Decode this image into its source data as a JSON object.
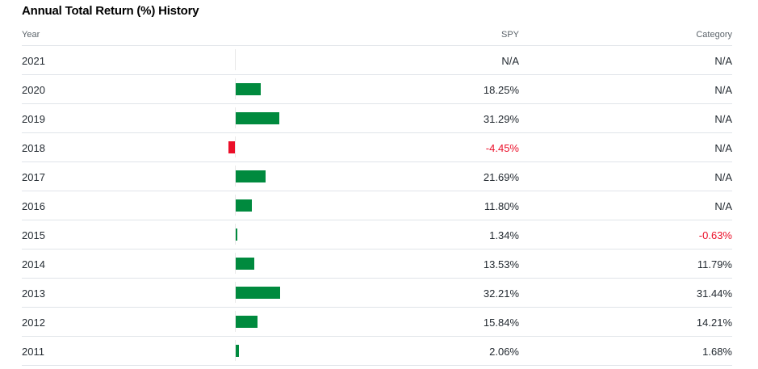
{
  "title": "Annual Total Return (%) History",
  "columns": {
    "year": "Year",
    "spy": "SPY",
    "category": "Category"
  },
  "colors": {
    "positive": "#008a3e",
    "negative": "#eb0f29"
  },
  "rows": [
    {
      "year": "2021",
      "spy": "N/A",
      "category": "N/A",
      "spy_value": null
    },
    {
      "year": "2020",
      "spy": "18.25%",
      "category": "N/A",
      "spy_value": 18.25
    },
    {
      "year": "2019",
      "spy": "31.29%",
      "category": "N/A",
      "spy_value": 31.29
    },
    {
      "year": "2018",
      "spy": "-4.45%",
      "category": "N/A",
      "spy_value": -4.45
    },
    {
      "year": "2017",
      "spy": "21.69%",
      "category": "N/A",
      "spy_value": 21.69
    },
    {
      "year": "2016",
      "spy": "11.80%",
      "category": "N/A",
      "spy_value": 11.8
    },
    {
      "year": "2015",
      "spy": "1.34%",
      "category": "-0.63%",
      "spy_value": 1.34
    },
    {
      "year": "2014",
      "spy": "13.53%",
      "category": "11.79%",
      "spy_value": 13.53
    },
    {
      "year": "2013",
      "spy": "32.21%",
      "category": "31.44%",
      "spy_value": 32.21
    },
    {
      "year": "2012",
      "spy": "15.84%",
      "category": "14.21%",
      "spy_value": 15.84
    },
    {
      "year": "2011",
      "spy": "2.06%",
      "category": "1.68%",
      "spy_value": 2.06
    }
  ]
}
